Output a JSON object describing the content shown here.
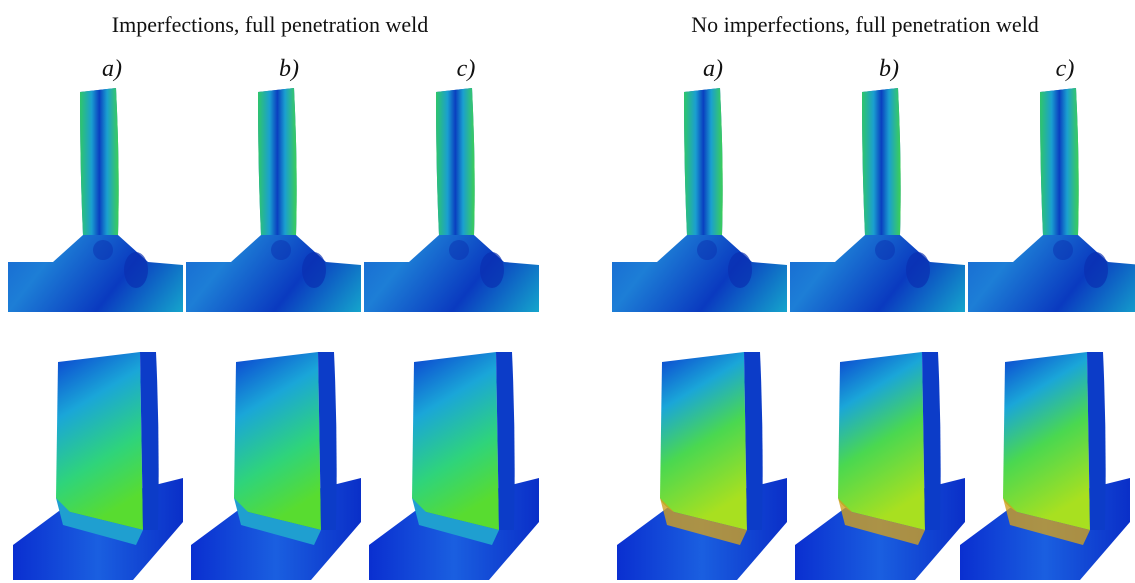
{
  "groups": [
    {
      "title": "Imperfections, full penetration weld",
      "labels": [
        "a)",
        "b)",
        "c)"
      ]
    },
    {
      "title": "No imperfections, full penetration weld",
      "labels": [
        "a)",
        "b)",
        "c)"
      ]
    }
  ]
}
